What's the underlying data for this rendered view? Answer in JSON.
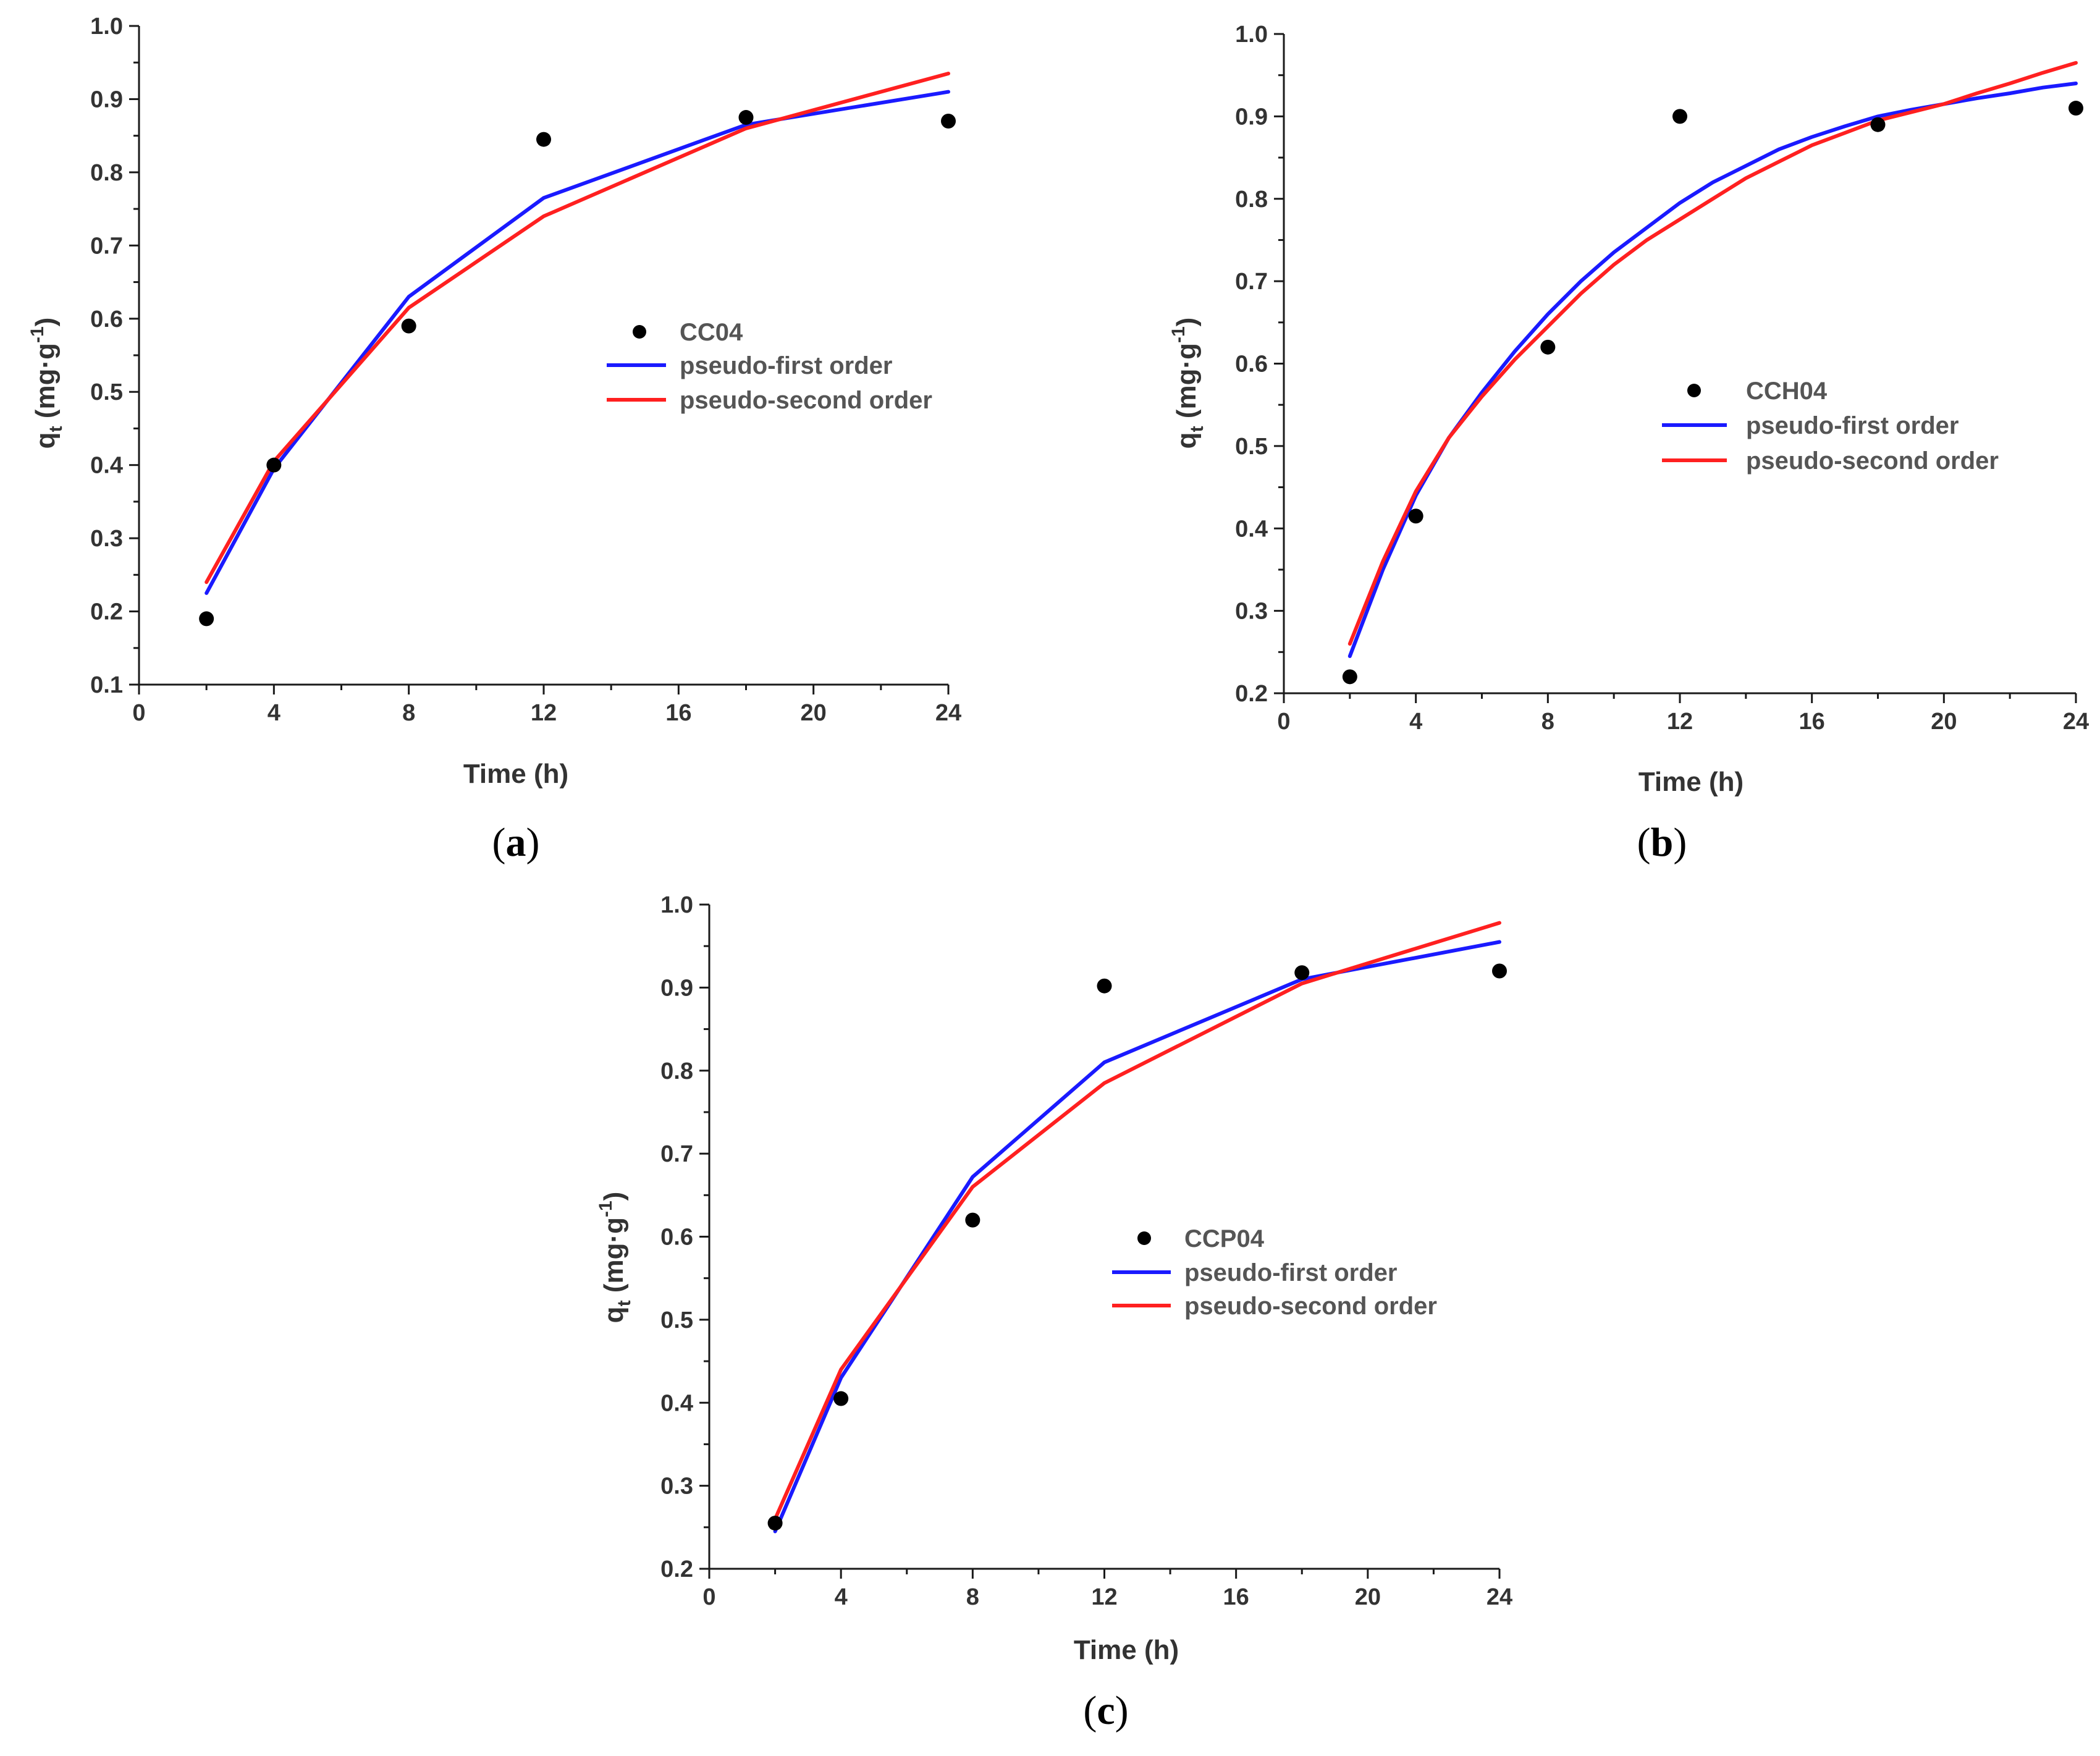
{
  "figure": {
    "background": "#ffffff",
    "colors": {
      "points": "#000000",
      "first_order": "#1a1aff",
      "second_order": "#ff2020",
      "axis": "#1a1a1a"
    }
  },
  "chart_data": [
    {
      "panel": "(a)",
      "panel_letter": "a",
      "type": "scatter",
      "xlabel": "Time (h)",
      "ylabel": "q_t (mg·g^-1)",
      "ylabel_parts": {
        "q": "q",
        "sub": "t",
        "unit": " (mg·g",
        "sup": "-1",
        "close": ")"
      },
      "xlim": [
        0,
        24
      ],
      "ylim": [
        0.1,
        1.0
      ],
      "xticks": [
        0,
        4,
        8,
        12,
        16,
        20,
        24
      ],
      "yticks": [
        0.1,
        0.2,
        0.3,
        0.4,
        0.5,
        0.6,
        0.7,
        0.8,
        0.9,
        1.0
      ],
      "ytick_labels": [
        "0.1",
        "0.2",
        "0.3",
        "0.4",
        "0.5",
        "0.6",
        "0.7",
        "0.8",
        "0.9",
        "1.0"
      ],
      "legend_position": "center-right",
      "series": [
        {
          "name": "CC04",
          "kind": "points",
          "x": [
            2,
            4,
            8,
            12,
            18,
            24
          ],
          "y": [
            0.19,
            0.4,
            0.59,
            0.845,
            0.875,
            0.87
          ]
        },
        {
          "name": "pseudo-first order",
          "kind": "line",
          "x": [
            2,
            4,
            8,
            12,
            18,
            24
          ],
          "y": [
            0.225,
            0.395,
            0.63,
            0.765,
            0.865,
            0.91
          ]
        },
        {
          "name": "pseudo-second order",
          "kind": "line",
          "x": [
            2,
            4,
            8,
            12,
            18,
            24
          ],
          "y": [
            0.24,
            0.405,
            0.615,
            0.74,
            0.86,
            0.935
          ]
        }
      ]
    },
    {
      "panel": "(b)",
      "panel_letter": "b",
      "type": "scatter",
      "xlabel": "Time (h)",
      "ylabel": "q_t (mg·g^-1)",
      "ylabel_parts": {
        "q": "q",
        "sub": "t",
        "unit": " (mg·g",
        "sup": "-1",
        "close": ")"
      },
      "xlim": [
        0,
        24
      ],
      "ylim": [
        0.2,
        1.0
      ],
      "xticks": [
        0,
        4,
        8,
        12,
        16,
        20,
        24
      ],
      "yticks": [
        0.2,
        0.3,
        0.4,
        0.5,
        0.6,
        0.7,
        0.8,
        0.9,
        1.0
      ],
      "ytick_labels": [
        "0.2",
        "0.3",
        "0.4",
        "0.5",
        "0.6",
        "0.7",
        "0.8",
        "0.9",
        "1.0"
      ],
      "legend_position": "center-right",
      "series": [
        {
          "name": "CCH04",
          "kind": "points",
          "x": [
            2,
            4,
            8,
            12,
            18,
            24
          ],
          "y": [
            0.22,
            0.415,
            0.62,
            0.9,
            0.89,
            0.91
          ]
        },
        {
          "name": "pseudo-first order",
          "kind": "line",
          "x": [
            2,
            3,
            4,
            5,
            6,
            7,
            8,
            9,
            10,
            11,
            12,
            13,
            14,
            15,
            16,
            17,
            18,
            19,
            20,
            21,
            22,
            23,
            24
          ],
          "y": [
            0.245,
            0.35,
            0.44,
            0.51,
            0.565,
            0.615,
            0.66,
            0.7,
            0.735,
            0.765,
            0.795,
            0.82,
            0.84,
            0.86,
            0.875,
            0.888,
            0.9,
            0.908,
            0.915,
            0.922,
            0.928,
            0.935,
            0.94
          ]
        },
        {
          "name": "pseudo-second order",
          "kind": "line",
          "x": [
            2,
            3,
            4,
            5,
            6,
            7,
            8,
            9,
            10,
            11,
            12,
            13,
            14,
            15,
            16,
            17,
            18,
            19,
            20,
            21,
            22,
            23,
            24
          ],
          "y": [
            0.26,
            0.36,
            0.445,
            0.51,
            0.56,
            0.605,
            0.645,
            0.685,
            0.72,
            0.75,
            0.775,
            0.8,
            0.825,
            0.845,
            0.865,
            0.88,
            0.895,
            0.905,
            0.915,
            0.928,
            0.94,
            0.953,
            0.965
          ]
        }
      ]
    },
    {
      "panel": "(c)",
      "panel_letter": "c",
      "type": "scatter",
      "xlabel": "Time (h)",
      "ylabel": "q_t (mg·g^-1)",
      "ylabel_parts": {
        "q": "q",
        "sub": "t",
        "unit": " (mg·g",
        "sup": "-1",
        "close": ")"
      },
      "xlim": [
        0,
        24
      ],
      "ylim": [
        0.2,
        1.0
      ],
      "xticks": [
        0,
        4,
        8,
        12,
        16,
        20,
        24
      ],
      "yticks": [
        0.2,
        0.3,
        0.4,
        0.5,
        0.6,
        0.7,
        0.8,
        0.9,
        1.0
      ],
      "ytick_labels": [
        "0.2",
        "0.3",
        "0.4",
        "0.5",
        "0.6",
        "0.7",
        "0.8",
        "0.9",
        "1.0"
      ],
      "legend_position": "center-right",
      "series": [
        {
          "name": "CCP04",
          "kind": "points",
          "x": [
            2,
            4,
            8,
            12,
            18,
            24
          ],
          "y": [
            0.255,
            0.405,
            0.62,
            0.902,
            0.918,
            0.92
          ]
        },
        {
          "name": "pseudo-first order",
          "kind": "line",
          "x": [
            2,
            4,
            8,
            12,
            18,
            24
          ],
          "y": [
            0.245,
            0.43,
            0.672,
            0.81,
            0.91,
            0.955
          ]
        },
        {
          "name": "pseudo-second order",
          "kind": "line",
          "x": [
            2,
            4,
            8,
            12,
            18,
            24
          ],
          "y": [
            0.26,
            0.44,
            0.66,
            0.785,
            0.905,
            0.978
          ]
        }
      ]
    }
  ]
}
